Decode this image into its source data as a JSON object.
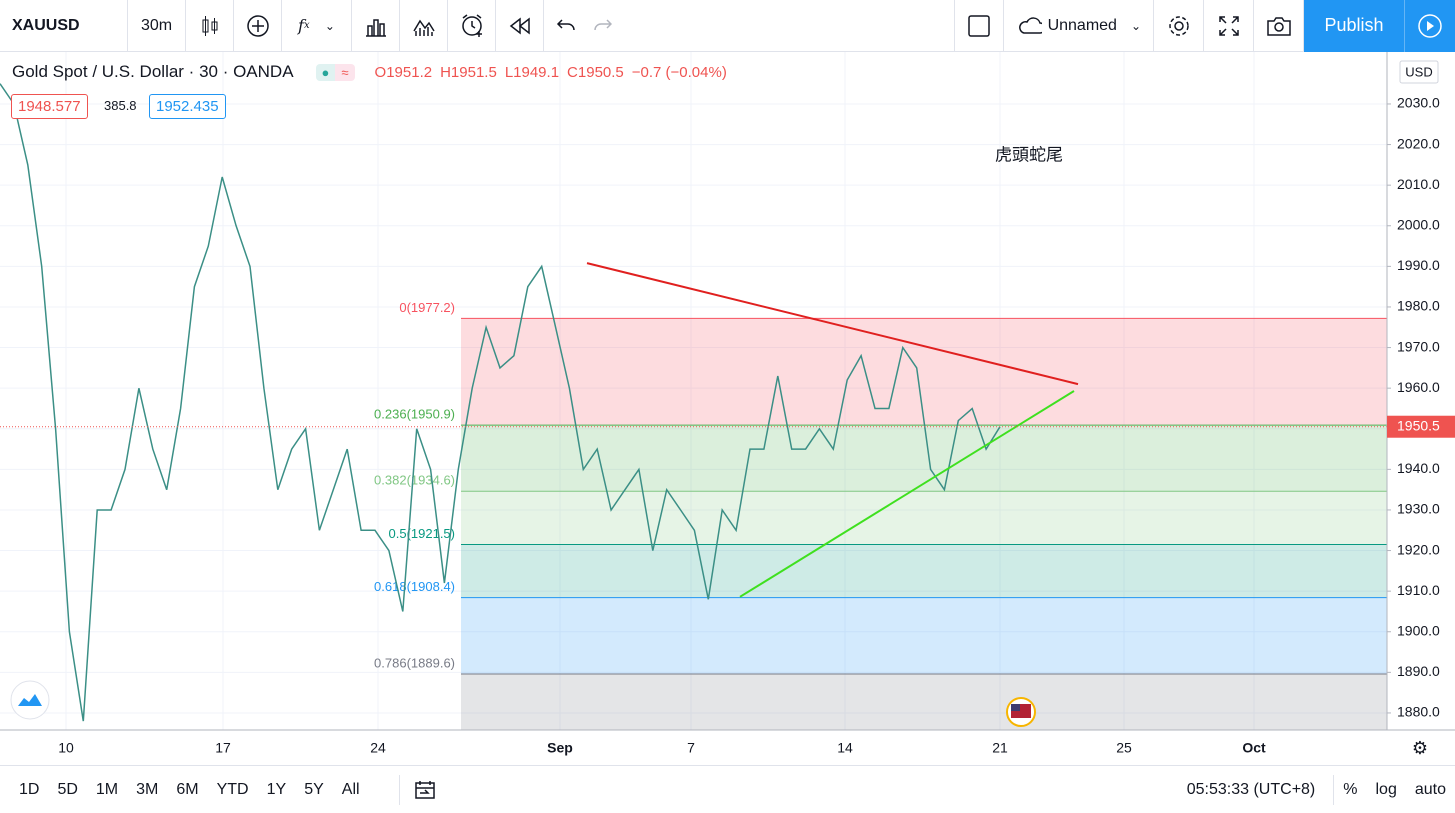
{
  "toolbar": {
    "symbol": "XAUUSD",
    "interval": "30m",
    "layout_name": "Unnamed",
    "publish": "Publish"
  },
  "legend": {
    "title": "Gold Spot / U.S. Dollar · 30 · OANDA",
    "ohlc": [
      "O1951.2",
      "H1951.5",
      "L1949.1",
      "C1950.5"
    ],
    "change": "−0.7 (−0.04%)",
    "bid": "1948.577",
    "spread": "385.8",
    "ask": "1952.435"
  },
  "chart_data": {
    "type": "line",
    "annotation": "虎頭蛇尾",
    "currency": "USD",
    "x_labels": [
      "10",
      "17",
      "24",
      "Sep",
      "7",
      "14",
      "21",
      "25",
      "Oct"
    ],
    "series": [
      {
        "color": "#3b8f86",
        "values": [
          2035,
          2030,
          2015,
          1990,
          1950,
          1900,
          1878,
          1930,
          1930,
          1940,
          1960,
          1945,
          1935,
          1955,
          1985,
          1995,
          2012,
          2000,
          1990,
          1960,
          1935,
          1945,
          1950,
          1925,
          1935,
          1945,
          1925,
          1925,
          1920,
          1905,
          1950,
          1940,
          1912,
          1940,
          1960,
          1975,
          1965,
          1968,
          1985,
          1990,
          1975,
          1960,
          1940,
          1945,
          1930,
          1935,
          1940,
          1920,
          1935,
          1930,
          1925,
          1908,
          1930,
          1925,
          1945,
          1945,
          1963,
          1945,
          1945,
          1950,
          1945,
          1962,
          1968,
          1955,
          1955,
          1970,
          1965,
          1940,
          1935,
          1952,
          1955,
          1945,
          1950.5
        ]
      }
    ],
    "last_price": 1950.5,
    "ylim": [
      1875.8,
      2042.8
    ],
    "yticks": [
      {
        "value": 1880,
        "label": "1880.0"
      },
      {
        "value": 1890,
        "label": "1890.0"
      },
      {
        "value": 1900,
        "label": "1900.0"
      },
      {
        "value": 1910,
        "label": "1910.0"
      },
      {
        "value": 1920,
        "label": "1920.0"
      },
      {
        "value": 1930,
        "label": "1930.0"
      },
      {
        "value": 1940,
        "label": "1940.0"
      },
      {
        "value": 1950,
        "label": "1950.0"
      },
      {
        "value": 1960,
        "label": "1960.0"
      },
      {
        "value": 1970,
        "label": "1970.0"
      },
      {
        "value": 1980,
        "label": "1980.0"
      },
      {
        "value": 1990,
        "label": "1990.0"
      },
      {
        "value": 2000,
        "label": "2000.0"
      },
      {
        "value": 2010,
        "label": "2010.0"
      },
      {
        "value": 2020,
        "label": "2020.0"
      },
      {
        "value": 2030,
        "label": "2030.0"
      }
    ],
    "grid": true,
    "fib_levels": [
      {
        "label": "0(1977.2)",
        "value": 1977.2,
        "color": "#f7525f"
      },
      {
        "label": "0.236(1950.9)",
        "value": 1950.9,
        "color": "#4caf50"
      },
      {
        "label": "0.382(1934.6)",
        "value": 1934.6,
        "color": "#81c784"
      },
      {
        "label": "0.5(1921.5)",
        "value": 1921.5,
        "color": "#089981"
      },
      {
        "label": "0.618(1908.4)",
        "value": 1908.4,
        "color": "#2196f3"
      },
      {
        "label": "0.786(1889.6)",
        "value": 1889.6,
        "color": "#787b86"
      }
    ],
    "trend_lines": [
      {
        "color": "#e0201f",
        "values": [
          1990.8,
          1961.0
        ]
      },
      {
        "color": "#3fe01f",
        "values": [
          1908.6,
          1959.3
        ]
      }
    ]
  },
  "bottom_bar": {
    "ranges": [
      "1D",
      "5D",
      "1M",
      "3M",
      "6M",
      "YTD",
      "1Y",
      "5Y",
      "All"
    ],
    "clock": "05:53:33 (UTC+8)",
    "options": [
      "%",
      "log",
      "auto"
    ]
  }
}
